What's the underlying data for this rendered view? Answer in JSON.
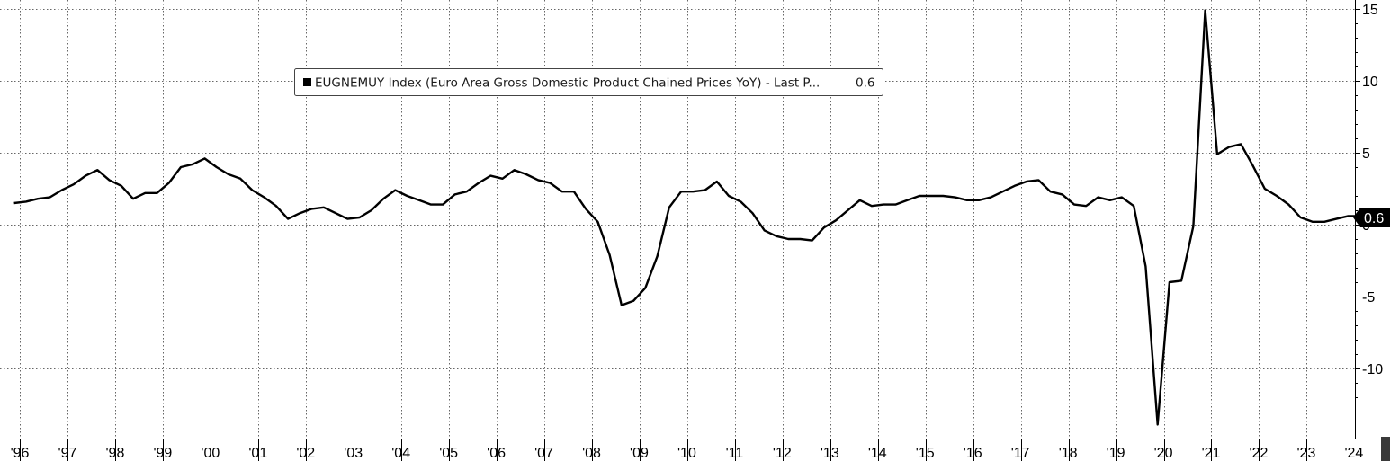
{
  "chart_data": {
    "type": "line",
    "title": "",
    "xlabel": "",
    "ylabel": "",
    "ylim": [
      -14,
      15
    ],
    "yticks": [
      15,
      10,
      5,
      0,
      -5,
      -10
    ],
    "xlim": [
      1996.0,
      2025.0
    ],
    "x_tick_labels": [
      "'96",
      "'97",
      "'98",
      "'99",
      "'00",
      "'01",
      "'02",
      "'03",
      "'04",
      "'05",
      "'06",
      "'07",
      "'08",
      "'09",
      "'10",
      "'11",
      "'12",
      "'13",
      "'14",
      "'15",
      "'16",
      "'17",
      "'18",
      "'19",
      "'20",
      "'21",
      "'22",
      "'23",
      "'24"
    ],
    "grid": true,
    "legend_position": "top-center",
    "legend": {
      "label": "EUGNEMUY Index (Euro Area Gross Domestic Product Chained  Prices YoY)  - Last P...",
      "value": "0.6"
    },
    "last_value_label": "0.6",
    "series": [
      {
        "name": "EUGNEMUY Index (Euro Area Gross Domestic Product Chained  Prices YoY)",
        "color": "#000000",
        "x": [
          1996.125,
          1996.375,
          1996.625,
          1996.875,
          1997.125,
          1997.375,
          1997.625,
          1997.875,
          1998.125,
          1998.375,
          1998.625,
          1998.875,
          1999.125,
          1999.375,
          1999.625,
          1999.875,
          2000.125,
          2000.375,
          2000.625,
          2000.875,
          2001.125,
          2001.375,
          2001.625,
          2001.875,
          2002.125,
          2002.375,
          2002.625,
          2002.875,
          2003.125,
          2003.375,
          2003.625,
          2003.875,
          2004.125,
          2004.375,
          2004.625,
          2004.875,
          2005.125,
          2005.375,
          2005.625,
          2005.875,
          2006.125,
          2006.375,
          2006.625,
          2006.875,
          2007.125,
          2007.375,
          2007.625,
          2007.875,
          2008.125,
          2008.375,
          2008.625,
          2008.875,
          2009.125,
          2009.375,
          2009.625,
          2009.875,
          2010.125,
          2010.375,
          2010.625,
          2010.875,
          2011.125,
          2011.375,
          2011.625,
          2011.875,
          2012.125,
          2012.375,
          2012.625,
          2012.875,
          2013.125,
          2013.375,
          2013.625,
          2013.875,
          2014.125,
          2014.375,
          2014.625,
          2014.875,
          2015.125,
          2015.375,
          2015.625,
          2015.875,
          2016.125,
          2016.375,
          2016.625,
          2016.875,
          2017.125,
          2017.375,
          2017.625,
          2017.875,
          2018.125,
          2018.375,
          2018.625,
          2018.875,
          2019.125,
          2019.375,
          2019.625,
          2019.875,
          2020.125,
          2020.375,
          2020.625,
          2020.875,
          2021.125,
          2021.375,
          2021.625,
          2021.875,
          2022.125,
          2022.375,
          2022.625,
          2022.875,
          2023.125,
          2023.375,
          2023.625,
          2023.875,
          2024.125,
          2024.375
        ],
        "y": [
          1.5,
          1.6,
          1.8,
          1.9,
          2.4,
          2.8,
          3.4,
          3.8,
          3.1,
          2.7,
          1.8,
          2.2,
          2.2,
          2.9,
          4.0,
          4.2,
          4.6,
          4.0,
          3.5,
          3.2,
          2.4,
          1.9,
          1.3,
          0.4,
          0.8,
          1.1,
          1.2,
          0.8,
          0.4,
          0.5,
          1.0,
          1.8,
          2.4,
          2.0,
          1.7,
          1.4,
          1.4,
          2.1,
          2.3,
          2.9,
          3.4,
          3.2,
          3.8,
          3.5,
          3.1,
          2.9,
          2.3,
          2.3,
          1.1,
          0.2,
          -2.1,
          -5.6,
          -5.3,
          -4.4,
          -2.2,
          1.2,
          2.3,
          2.3,
          2.4,
          3.0,
          2.0,
          1.6,
          0.8,
          -0.4,
          -0.8,
          -1.0,
          -1.0,
          -1.1,
          -0.2,
          0.3,
          1.0,
          1.7,
          1.3,
          1.4,
          1.4,
          1.7,
          2.0,
          2.0,
          2.0,
          1.9,
          1.7,
          1.7,
          1.9,
          2.3,
          2.7,
          3.0,
          3.1,
          2.3,
          2.1,
          1.4,
          1.3,
          1.9,
          1.7,
          1.9,
          1.3,
          -2.9,
          -13.9,
          -4.0,
          -3.9,
          -0.1,
          14.9,
          4.9,
          5.4,
          5.6,
          4.1,
          2.5,
          2.0,
          1.4,
          0.5,
          0.2,
          0.2,
          0.4,
          0.6,
          0.6
        ]
      }
    ]
  }
}
